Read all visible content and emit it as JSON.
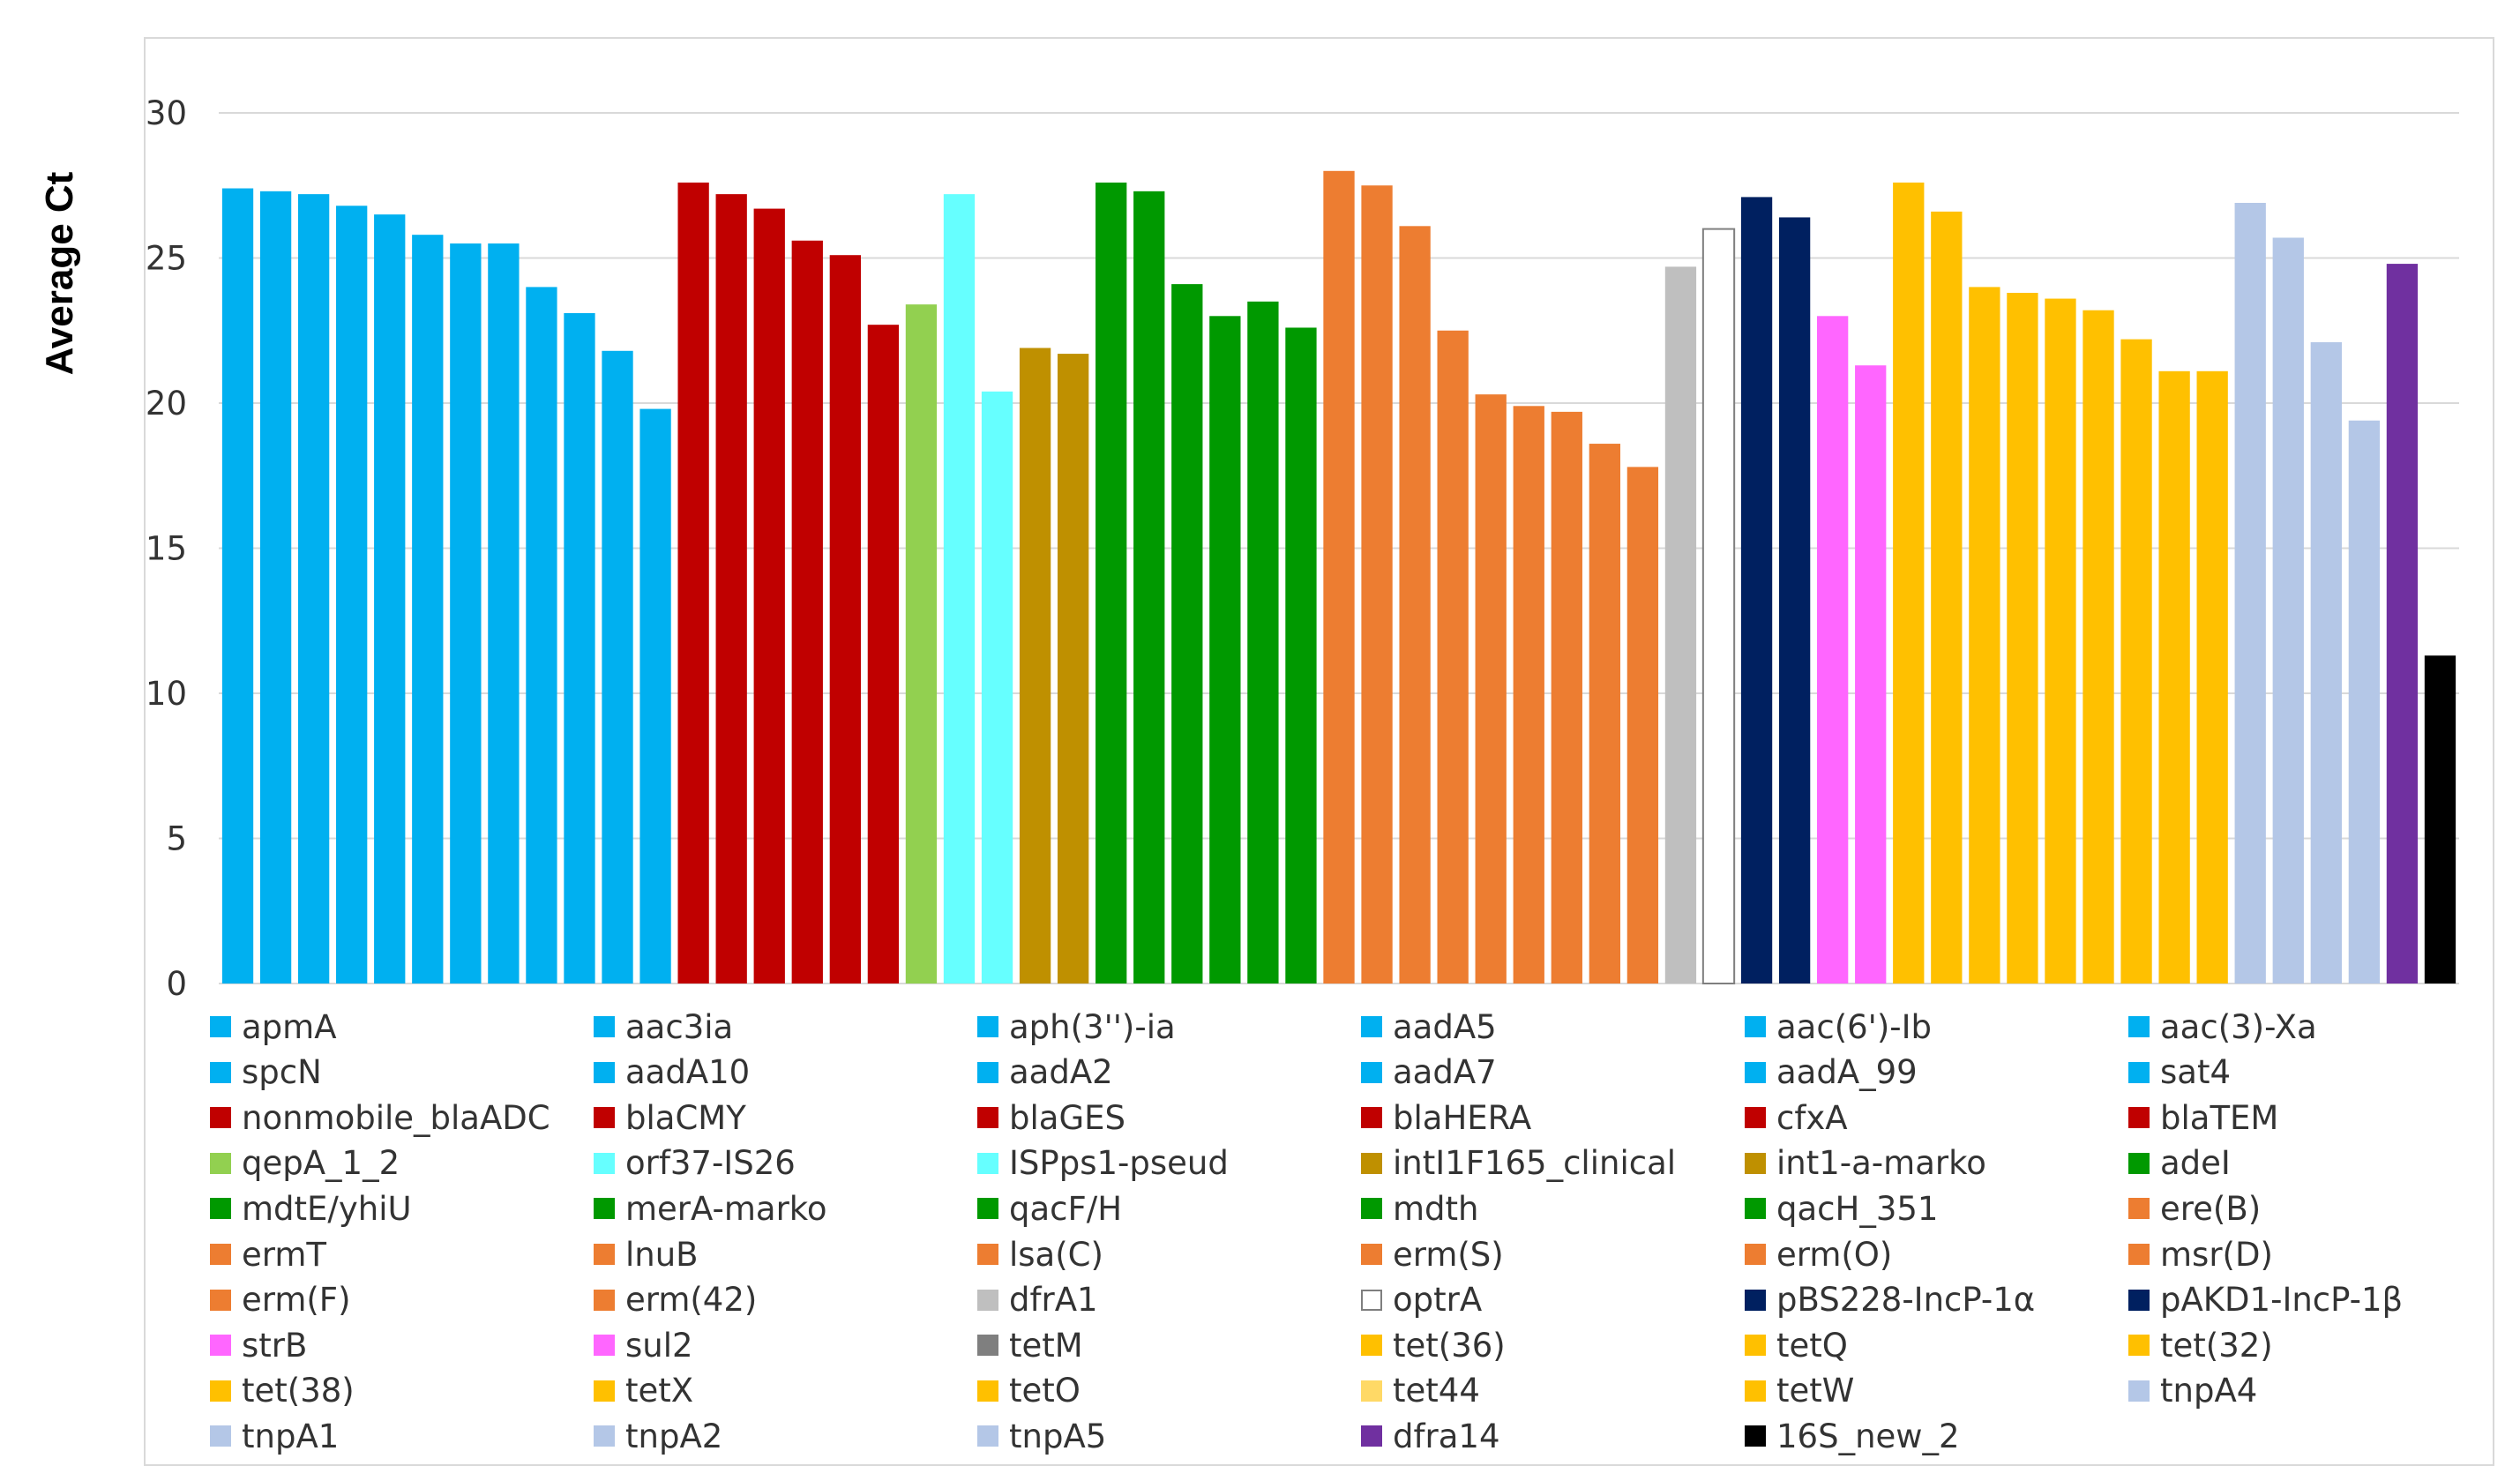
{
  "chart_data": {
    "type": "bar",
    "ylabel": "Average Ct",
    "ylim": [
      0,
      30
    ],
    "yticks": [
      0,
      5,
      10,
      15,
      20,
      25,
      30
    ],
    "grid": true,
    "legend_position": "bottom",
    "series": [
      {
        "name": "apmA",
        "value": 27.4,
        "color": "#00b0f0"
      },
      {
        "name": "aac3ia",
        "value": 27.3,
        "color": "#00b0f0"
      },
      {
        "name": "aph(3'')-ia",
        "value": 27.2,
        "color": "#00b0f0"
      },
      {
        "name": "aadA5",
        "value": 26.8,
        "color": "#00b0f0"
      },
      {
        "name": "aac(6')-Ib",
        "value": 26.5,
        "color": "#00b0f0"
      },
      {
        "name": "aac(3)-Xa",
        "value": 25.8,
        "color": "#00b0f0"
      },
      {
        "name": "spcN",
        "value": 25.5,
        "color": "#00b0f0"
      },
      {
        "name": "aadA10",
        "value": 25.5,
        "color": "#00b0f0"
      },
      {
        "name": "aadA2",
        "value": 24.0,
        "color": "#00b0f0"
      },
      {
        "name": "aadA7",
        "value": 23.1,
        "color": "#00b0f0"
      },
      {
        "name": "aadA_99",
        "value": 21.8,
        "color": "#00b0f0"
      },
      {
        "name": "sat4",
        "value": 19.8,
        "color": "#00b0f0"
      },
      {
        "name": "nonmobile_blaADC",
        "value": 27.6,
        "color": "#c00000"
      },
      {
        "name": "blaCMY",
        "value": 27.2,
        "color": "#c00000"
      },
      {
        "name": "blaGES",
        "value": 26.7,
        "color": "#c00000"
      },
      {
        "name": "blaHERA",
        "value": 25.6,
        "color": "#c00000"
      },
      {
        "name": "cfxA",
        "value": 25.1,
        "color": "#c00000"
      },
      {
        "name": "blaTEM",
        "value": 22.7,
        "color": "#c00000"
      },
      {
        "name": "qepA_1_2",
        "value": 23.4,
        "color": "#92d050"
      },
      {
        "name": "orf37-IS26",
        "value": 27.2,
        "color": "#66ffff"
      },
      {
        "name": "ISPps1-pseud",
        "value": 20.4,
        "color": "#66ffff"
      },
      {
        "name": "intI1F165_clinical",
        "value": 21.9,
        "color": "#bf9000"
      },
      {
        "name": "int1-a-marko",
        "value": 21.7,
        "color": "#bf9000"
      },
      {
        "name": "adeI",
        "value": 27.6,
        "color": "#009900"
      },
      {
        "name": "mdtE/yhiU",
        "value": 27.3,
        "color": "#009900"
      },
      {
        "name": "merA-marko",
        "value": 24.1,
        "color": "#009900"
      },
      {
        "name": "qacF/H",
        "value": 23.0,
        "color": "#009900"
      },
      {
        "name": "mdth",
        "value": 23.5,
        "color": "#009900"
      },
      {
        "name": "qacH_351",
        "value": 22.6,
        "color": "#009900"
      },
      {
        "name": "ere(B)",
        "value": 28.0,
        "color": "#ed7d31"
      },
      {
        "name": "ermT",
        "value": 27.5,
        "color": "#ed7d31"
      },
      {
        "name": "lnuB",
        "value": 26.1,
        "color": "#ed7d31"
      },
      {
        "name": "lsa(C)",
        "value": 22.5,
        "color": "#ed7d31"
      },
      {
        "name": "erm(S)",
        "value": 20.3,
        "color": "#ed7d31"
      },
      {
        "name": "erm(O)",
        "value": 19.9,
        "color": "#ed7d31"
      },
      {
        "name": "msr(D)",
        "value": 19.7,
        "color": "#ed7d31"
      },
      {
        "name": "erm(F)",
        "value": 18.6,
        "color": "#ed7d31"
      },
      {
        "name": "erm(42)",
        "value": 17.8,
        "color": "#ed7d31"
      },
      {
        "name": "dfrA1",
        "value": 24.7,
        "color": "#bfbfbf"
      },
      {
        "name": "optrA",
        "value": 26.0,
        "color": "#ffffff",
        "outline": "#7f7f7f"
      },
      {
        "name": "pBS228-IncP-1α",
        "value": 27.1,
        "color": "#002060"
      },
      {
        "name": "pAKD1-IncP-1β",
        "value": 26.4,
        "color": "#002060"
      },
      {
        "name": "strB",
        "value": 23.0,
        "color": "#ff66ff"
      },
      {
        "name": "sul2",
        "value": 21.3,
        "color": "#ff66ff"
      },
      {
        "name": "tetM",
        "value": 27.6,
        "color": "#ffc000",
        "legend_color": "#7f7f7f"
      },
      {
        "name": "tet(36)",
        "value": 26.6,
        "color": "#ffc000"
      },
      {
        "name": "tetQ",
        "value": 24.0,
        "color": "#ffc000"
      },
      {
        "name": "tet(32)",
        "value": 23.8,
        "color": "#ffc000"
      },
      {
        "name": "tet(38)",
        "value": 23.6,
        "color": "#ffc000"
      },
      {
        "name": "tetX",
        "value": 23.2,
        "color": "#ffc000"
      },
      {
        "name": "tetO",
        "value": 22.2,
        "color": "#ffc000"
      },
      {
        "name": "tet44",
        "value": 21.1,
        "color": "#ffc000",
        "legend_color": "#ffd966"
      },
      {
        "name": "tetW",
        "value": 21.1,
        "color": "#ffc000"
      },
      {
        "name": "tnpA4",
        "value": 26.9,
        "color": "#b4c7e7"
      },
      {
        "name": "tnpA1",
        "value": 25.7,
        "color": "#b4c7e7"
      },
      {
        "name": "tnpA2",
        "value": 22.1,
        "color": "#b4c7e7"
      },
      {
        "name": "tnpA5",
        "value": 19.4,
        "color": "#b4c7e7"
      },
      {
        "name": "dfra14",
        "value": 24.8,
        "color": "#7030a0"
      },
      {
        "name": "16S_new_2",
        "value": 11.3,
        "color": "#000000"
      }
    ]
  }
}
